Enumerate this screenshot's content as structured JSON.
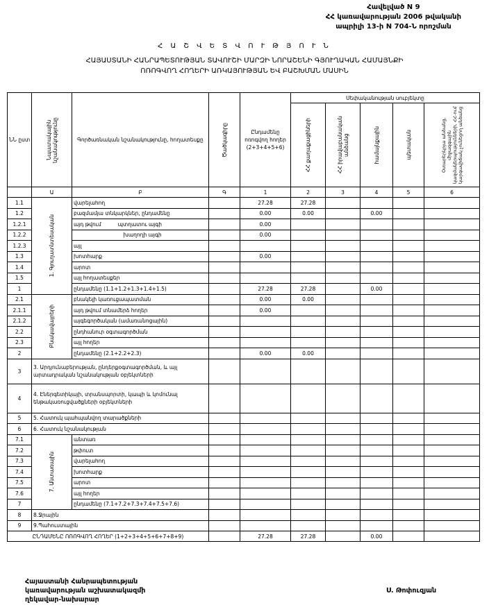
{
  "annex": {
    "line1": "Հավելված N 9",
    "line2": "ՀՀ կառավարության 2006 թվականի",
    "line3": "ապրիլի 13-ի N 704-Ն որոշման"
  },
  "title": "Հ Ա Շ Վ Ե Տ Վ Ո Ւ Թ Յ Ո Ւ Ն",
  "subtitle": {
    "line1": "ՀԱՅԱՍՏԱՆԻ ՀԱՆՐԱՊԵՏՈՒԹՅԱՆ ՏԱՎՈՒՇԻ ՄԱՐԶԻ ՆՈՐԱՇԵՆԻ ԳՅՈՒՂԱԿԱՆ ՀԱՄԱՅՆՔԻ",
    "line2": "ՈՌՈԳՎՈՂ ՀՈՂԵՐԻ ԱՌԿԱՅՈՒԹՅԱՆ ԵՎ ԲԱՇԽՄԱՆ ՄԱՍԻՆ"
  },
  "table": {
    "headers": {
      "num": "ՆՆ ըստ",
      "purpose": "Նպատակային նշանակությունը",
      "functional": "Գործառնական նշանակությունը, հողատեսքը",
      "code": "Ծածկագիրը",
      "total": "Ընդամենը ոռոգվող հողեր (2+3+4+5+6)",
      "ownership": "Սեփականության սուբյեկտը",
      "citizens": "ՀՀ քաղաքացիների",
      "legal": "ՀՀ իրավաբանական անձանց",
      "community": "համայնքային",
      "state": "պետական",
      "foreign": "Օտարերկրյա անձանց, միջազգային կազմակերպությունների, ՀՀ-ում կարգավիճակ չունեցող անձանց"
    },
    "index_row": [
      "",
      "Ա",
      "Բ",
      "Գ",
      "1",
      "2",
      "3",
      "4",
      "5",
      "6"
    ],
    "groups": {
      "g1": "1. Գյուղատնտեսական",
      "g2": "Բնակավայրերի",
      "g7": "7. Անտառային"
    },
    "rows": [
      {
        "num": "1.1",
        "label": "վարելահող",
        "values": [
          "27.28",
          "27.28",
          "",
          "",
          "",
          ""
        ]
      },
      {
        "num": "1.2",
        "label": "բազմամյա տնկարկներ, ընդամենը",
        "values": [
          "0.00",
          "0.00",
          "",
          "0.00",
          "",
          ""
        ]
      },
      {
        "num": "1.2.1",
        "label": "այդ թվում          պտղատու այգի",
        "values": [
          "0.00",
          "",
          "",
          "",
          "",
          ""
        ]
      },
      {
        "num": "1.2.2",
        "label": "                              խաղողի այգի",
        "values": [
          "0.00",
          "",
          "",
          "",
          "",
          ""
        ]
      },
      {
        "num": "1.2.3",
        "label": "այլ",
        "values": [
          "",
          "",
          "",
          "",
          "",
          ""
        ]
      },
      {
        "num": "1.3",
        "label": "խոտհարք",
        "values": [
          "0.00",
          "",
          "",
          "",
          "",
          ""
        ]
      },
      {
        "num": "1.4",
        "label": "արոտ",
        "values": [
          "",
          "",
          "",
          "",
          "",
          ""
        ]
      },
      {
        "num": "1.5",
        "label": "այլ հողատեսքեր",
        "values": [
          "",
          "",
          "",
          "",
          "",
          ""
        ]
      },
      {
        "num": "1",
        "label": "ընդամենը (1.1+1.2+1.3+1.4+1.5)",
        "values": [
          "27.28",
          "27.28",
          "",
          "0.00",
          "",
          ""
        ]
      },
      {
        "num": "2.1",
        "label": "բնակելի կառուցապատման",
        "values": [
          "0.00",
          "0.00",
          "",
          "",
          "",
          ""
        ]
      },
      {
        "num": "2.1.1",
        "label": "այդ թվում տնամերձ հողեր",
        "values": [
          "0.00",
          "",
          "",
          "",
          "",
          ""
        ]
      },
      {
        "num": "2.1.2",
        "label": "այգեգործական (ամառանոցային)",
        "values": [
          "",
          "",
          "",
          "",
          "",
          ""
        ]
      },
      {
        "num": "2.2",
        "label": "ընդհանուր օգտագործման",
        "values": [
          "",
          "",
          "",
          "",
          "",
          ""
        ]
      },
      {
        "num": "2.3",
        "label": "այլ հողեր",
        "values": [
          "",
          "",
          "",
          "",
          "",
          ""
        ]
      },
      {
        "num": "2",
        "label": "ընդամենը (2.1+2.2+2.3)",
        "values": [
          "0.00",
          "0.00",
          "",
          "",
          "",
          ""
        ]
      },
      {
        "num": "3",
        "label": "3. Արդյունաբերության, ընդերքօգտագործման, և այլ արտադրական նշանակության օբյեկտների",
        "values": [
          "",
          "",
          "",
          "",
          "",
          ""
        ]
      },
      {
        "num": "4",
        "label": "4. Էներգետիկայի, տրանսպորտի, կապի և կոմունալ ենթակառուցվածքների օբյեկտների",
        "values": [
          "",
          "",
          "",
          "",
          "",
          ""
        ]
      },
      {
        "num": "5",
        "label": "5. Հատուկ պահպանվող տարածքների",
        "values": [
          "",
          "",
          "",
          "",
          "",
          ""
        ]
      },
      {
        "num": "6",
        "label": "6. Հատուկ նշանակության",
        "values": [
          "",
          "",
          "",
          "",
          "",
          ""
        ]
      },
      {
        "num": "7.1",
        "label": "անտառ",
        "values": [
          "",
          "",
          "",
          "",
          "",
          ""
        ]
      },
      {
        "num": "7.2",
        "label": "թփուտ",
        "values": [
          "",
          "",
          "",
          "",
          "",
          ""
        ]
      },
      {
        "num": "7.3",
        "label": "վարելահող",
        "values": [
          "",
          "",
          "",
          "",
          "",
          ""
        ]
      },
      {
        "num": "7.4",
        "label": "խոտհարք",
        "values": [
          "",
          "",
          "",
          "",
          "",
          ""
        ]
      },
      {
        "num": "7.5",
        "label": "արոտ",
        "values": [
          "",
          "",
          "",
          "",
          "",
          ""
        ]
      },
      {
        "num": "7.6",
        "label": "այլ հողեր",
        "values": [
          "",
          "",
          "",
          "",
          "",
          ""
        ]
      },
      {
        "num": "7",
        "label": "ընդամենը (7.1+7.2+7.3+7.4+7.5+7.6)",
        "values": [
          "",
          "",
          "",
          "",
          "",
          ""
        ]
      },
      {
        "num": "8",
        "label": "8.Ջրային",
        "values": [
          "",
          "",
          "",
          "",
          "",
          ""
        ]
      },
      {
        "num": "9",
        "label": "9.Պահուստային",
        "values": [
          "",
          "",
          "",
          "",
          "",
          ""
        ]
      }
    ],
    "grand_total": {
      "label": "ԸՆԴԱՄԵՆԸ ՈՌՈԳՎՈՂ ՀՈՂԵՐ (1+2+3+4+5+6+7+8+9)",
      "values": [
        "27.28",
        "27.28",
        "",
        "0.00",
        "",
        ""
      ]
    }
  },
  "footer": {
    "line1": "Հայաստանի Հանրապետության",
    "line2": "կառավարության աշխատակազմի",
    "line3": "ղեկավար-նախարար",
    "signatory": "Ս. Թոփուզյան"
  }
}
